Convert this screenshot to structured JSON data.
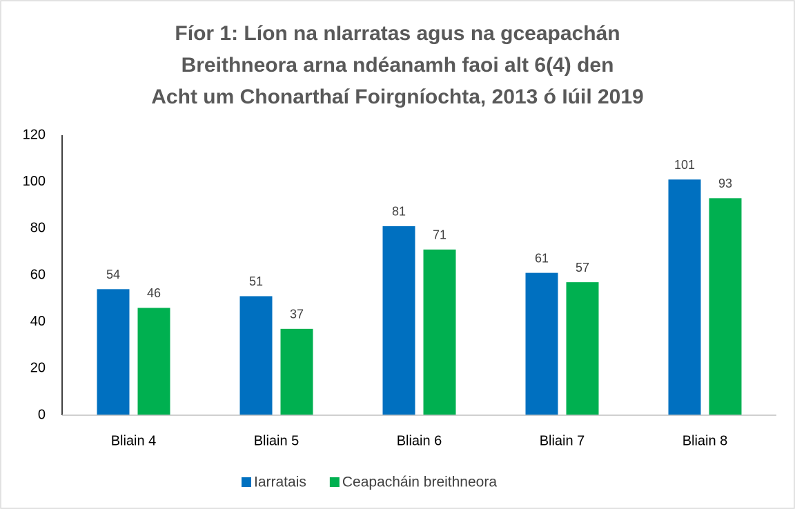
{
  "chart_data": {
    "type": "bar",
    "title": [
      "Fíor 1: Líon na nIarratas agus na gceapachán",
      "Breithneora arna ndéanamh faoi alt 6(4) den",
      "Acht um Chonarthaí Foirgníochta, 2013 ó Iúil 2019"
    ],
    "categories": [
      "Bliain 4",
      "Bliain 5",
      "Bliain 6",
      "Bliain 7",
      "Bliain 8"
    ],
    "series": [
      {
        "name": "Iarratais",
        "color": "#0070C0",
        "values": [
          54,
          51,
          81,
          61,
          101
        ]
      },
      {
        "name": "Ceapacháin breithneora",
        "color": "#00B050",
        "values": [
          46,
          37,
          71,
          57,
          93
        ]
      }
    ],
    "ylim": [
      0,
      120
    ],
    "yticks": [
      0,
      20,
      40,
      60,
      80,
      100,
      120
    ],
    "grid": false,
    "legend": "bottom"
  }
}
